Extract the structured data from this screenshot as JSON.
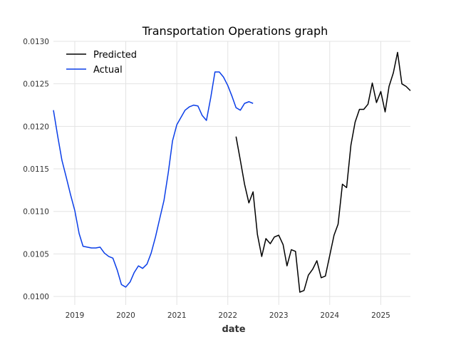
{
  "chart_data": {
    "type": "line",
    "title": "Transportation Operations graph",
    "xlabel": "date",
    "ylabel": "",
    "x_axis": "date",
    "xlim": [
      "2018-08-01",
      "2025-08-01"
    ],
    "ylim": [
      0.0099,
      0.013
    ],
    "x_ticks": [
      "2019",
      "2020",
      "2021",
      "2022",
      "2023",
      "2024",
      "2025"
    ],
    "y_ticks": [
      "0.0100",
      "0.0105",
      "0.0110",
      "0.0115",
      "0.0120",
      "0.0125",
      "0.0130"
    ],
    "grid": true,
    "legend_position": "top-left",
    "series": [
      {
        "name": "Predicted",
        "color": "#000000",
        "points": [
          [
            "2022-03-01",
            0.01188
          ],
          [
            "2022-04-01",
            0.0116
          ],
          [
            "2022-05-01",
            0.01132
          ],
          [
            "2022-06-01",
            0.0111
          ],
          [
            "2022-07-01",
            0.01123
          ],
          [
            "2022-08-01",
            0.01073
          ],
          [
            "2022-09-01",
            0.01047
          ],
          [
            "2022-10-01",
            0.01068
          ],
          [
            "2022-11-01",
            0.01062
          ],
          [
            "2022-12-01",
            0.0107
          ],
          [
            "2023-01-01",
            0.01072
          ],
          [
            "2023-02-01",
            0.01061
          ],
          [
            "2023-03-01",
            0.01036
          ],
          [
            "2023-04-01",
            0.01055
          ],
          [
            "2023-05-01",
            0.01053
          ],
          [
            "2023-06-01",
            0.01005
          ],
          [
            "2023-07-01",
            0.01007
          ],
          [
            "2023-08-01",
            0.01025
          ],
          [
            "2023-09-01",
            0.01032
          ],
          [
            "2023-10-01",
            0.01042
          ],
          [
            "2023-11-01",
            0.01022
          ],
          [
            "2023-12-01",
            0.01024
          ],
          [
            "2024-01-01",
            0.01048
          ],
          [
            "2024-02-01",
            0.01072
          ],
          [
            "2024-03-01",
            0.01085
          ],
          [
            "2024-04-01",
            0.01132
          ],
          [
            "2024-05-01",
            0.01128
          ],
          [
            "2024-06-01",
            0.01178
          ],
          [
            "2024-07-01",
            0.01205
          ],
          [
            "2024-08-01",
            0.0122
          ],
          [
            "2024-09-01",
            0.0122
          ],
          [
            "2024-10-01",
            0.01226
          ],
          [
            "2024-11-01",
            0.01251
          ],
          [
            "2024-12-01",
            0.01228
          ],
          [
            "2025-01-01",
            0.01241
          ],
          [
            "2025-02-01",
            0.01217
          ],
          [
            "2025-03-01",
            0.01247
          ],
          [
            "2025-04-01",
            0.01263
          ],
          [
            "2025-05-01",
            0.01287
          ],
          [
            "2025-06-01",
            0.0125
          ],
          [
            "2025-07-01",
            0.01247
          ],
          [
            "2025-08-01",
            0.01242
          ]
        ]
      },
      {
        "name": "Actual",
        "color": "#0a3ee8",
        "points": [
          [
            "2018-08-01",
            0.01219
          ],
          [
            "2018-09-01",
            0.01188
          ],
          [
            "2018-10-01",
            0.0116
          ],
          [
            "2018-11-01",
            0.0114
          ],
          [
            "2018-12-01",
            0.0112
          ],
          [
            "2019-01-01",
            0.01101
          ],
          [
            "2019-02-01",
            0.01074
          ],
          [
            "2019-03-01",
            0.01059
          ],
          [
            "2019-04-01",
            0.01058
          ],
          [
            "2019-05-01",
            0.01057
          ],
          [
            "2019-06-01",
            0.01057
          ],
          [
            "2019-07-01",
            0.01058
          ],
          [
            "2019-08-01",
            0.01051
          ],
          [
            "2019-09-01",
            0.01047
          ],
          [
            "2019-10-01",
            0.01045
          ],
          [
            "2019-11-01",
            0.01031
          ],
          [
            "2019-12-01",
            0.01014
          ],
          [
            "2020-01-01",
            0.01011
          ],
          [
            "2020-02-01",
            0.01017
          ],
          [
            "2020-03-01",
            0.01028
          ],
          [
            "2020-04-01",
            0.01036
          ],
          [
            "2020-05-01",
            0.01033
          ],
          [
            "2020-06-01",
            0.01038
          ],
          [
            "2020-07-01",
            0.01051
          ],
          [
            "2020-08-01",
            0.0107
          ],
          [
            "2020-09-01",
            0.01092
          ],
          [
            "2020-10-01",
            0.01113
          ],
          [
            "2020-11-01",
            0.01146
          ],
          [
            "2020-12-01",
            0.01183
          ],
          [
            "2021-01-01",
            0.01202
          ],
          [
            "2021-02-01",
            0.01211
          ],
          [
            "2021-03-01",
            0.01219
          ],
          [
            "2021-04-01",
            0.01223
          ],
          [
            "2021-05-01",
            0.01225
          ],
          [
            "2021-06-01",
            0.01224
          ],
          [
            "2021-07-01",
            0.01213
          ],
          [
            "2021-08-01",
            0.01207
          ],
          [
            "2021-09-01",
            0.01234
          ],
          [
            "2021-10-01",
            0.01264
          ],
          [
            "2021-11-01",
            0.01264
          ],
          [
            "2021-12-01",
            0.01258
          ],
          [
            "2022-01-01",
            0.01248
          ],
          [
            "2022-02-01",
            0.01235
          ],
          [
            "2022-03-01",
            0.01222
          ],
          [
            "2022-04-01",
            0.01219
          ],
          [
            "2022-05-01",
            0.01227
          ],
          [
            "2022-06-01",
            0.01229
          ],
          [
            "2022-07-01",
            0.01227
          ]
        ]
      }
    ]
  }
}
